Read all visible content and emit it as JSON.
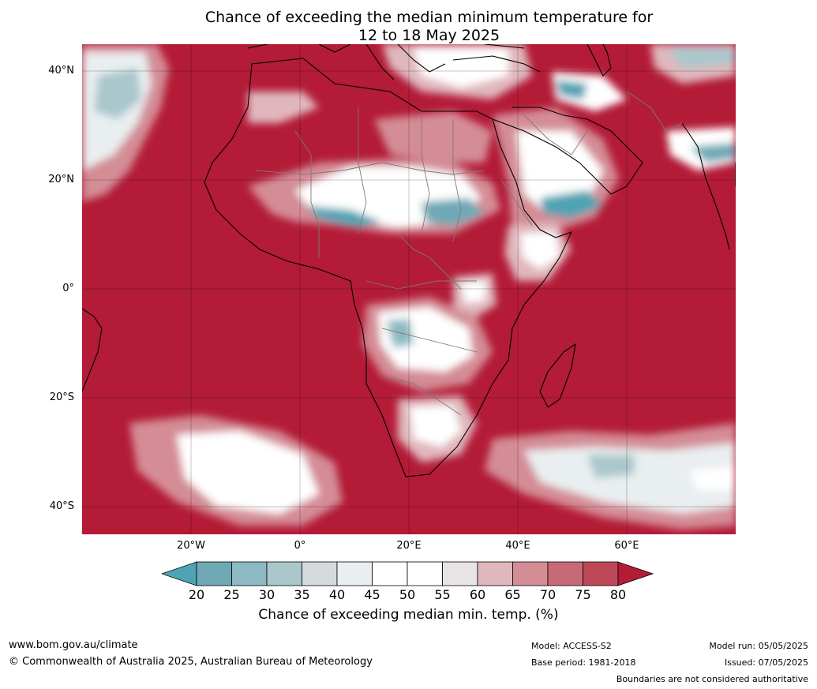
{
  "title": {
    "line1": "Chance of exceeding the median minimum temperature for",
    "line2": "12 to 18 May 2025"
  },
  "axes": {
    "lat_labels": [
      "40°N",
      "20°N",
      "0°",
      "20°S",
      "40°S"
    ],
    "lon_labels": [
      "20°W",
      "0°",
      "20°E",
      "40°E",
      "60°E"
    ]
  },
  "colorbar": {
    "ticks": [
      "20",
      "25",
      "30",
      "35",
      "40",
      "45",
      "50",
      "55",
      "60",
      "65",
      "70",
      "75",
      "80"
    ],
    "label": "Chance of exceeding median min. temp. (%)",
    "colors": [
      "#4fa3b4",
      "#6ea9b5",
      "#8db9c3",
      "#aac7cc",
      "#d5dadc",
      "#e9eef0",
      "#ffffff",
      "#ffffff",
      "#e8e4e6",
      "#e0b7bd",
      "#d48c95",
      "#c66a78",
      "#bd4858",
      "#b31b37"
    ]
  },
  "footer": {
    "url": "www.bom.gov.au/climate",
    "copyright": "© Commonwealth of Australia 2025, Australian Bureau of Meteorology",
    "model": "Model: ACCESS-S2",
    "base_period": "Base period: 1981-2018",
    "model_run": "Model run: 05/05/2025",
    "issued": "Issued: 07/05/2025",
    "boundaries": "Boundaries are not considered authoritative"
  }
}
